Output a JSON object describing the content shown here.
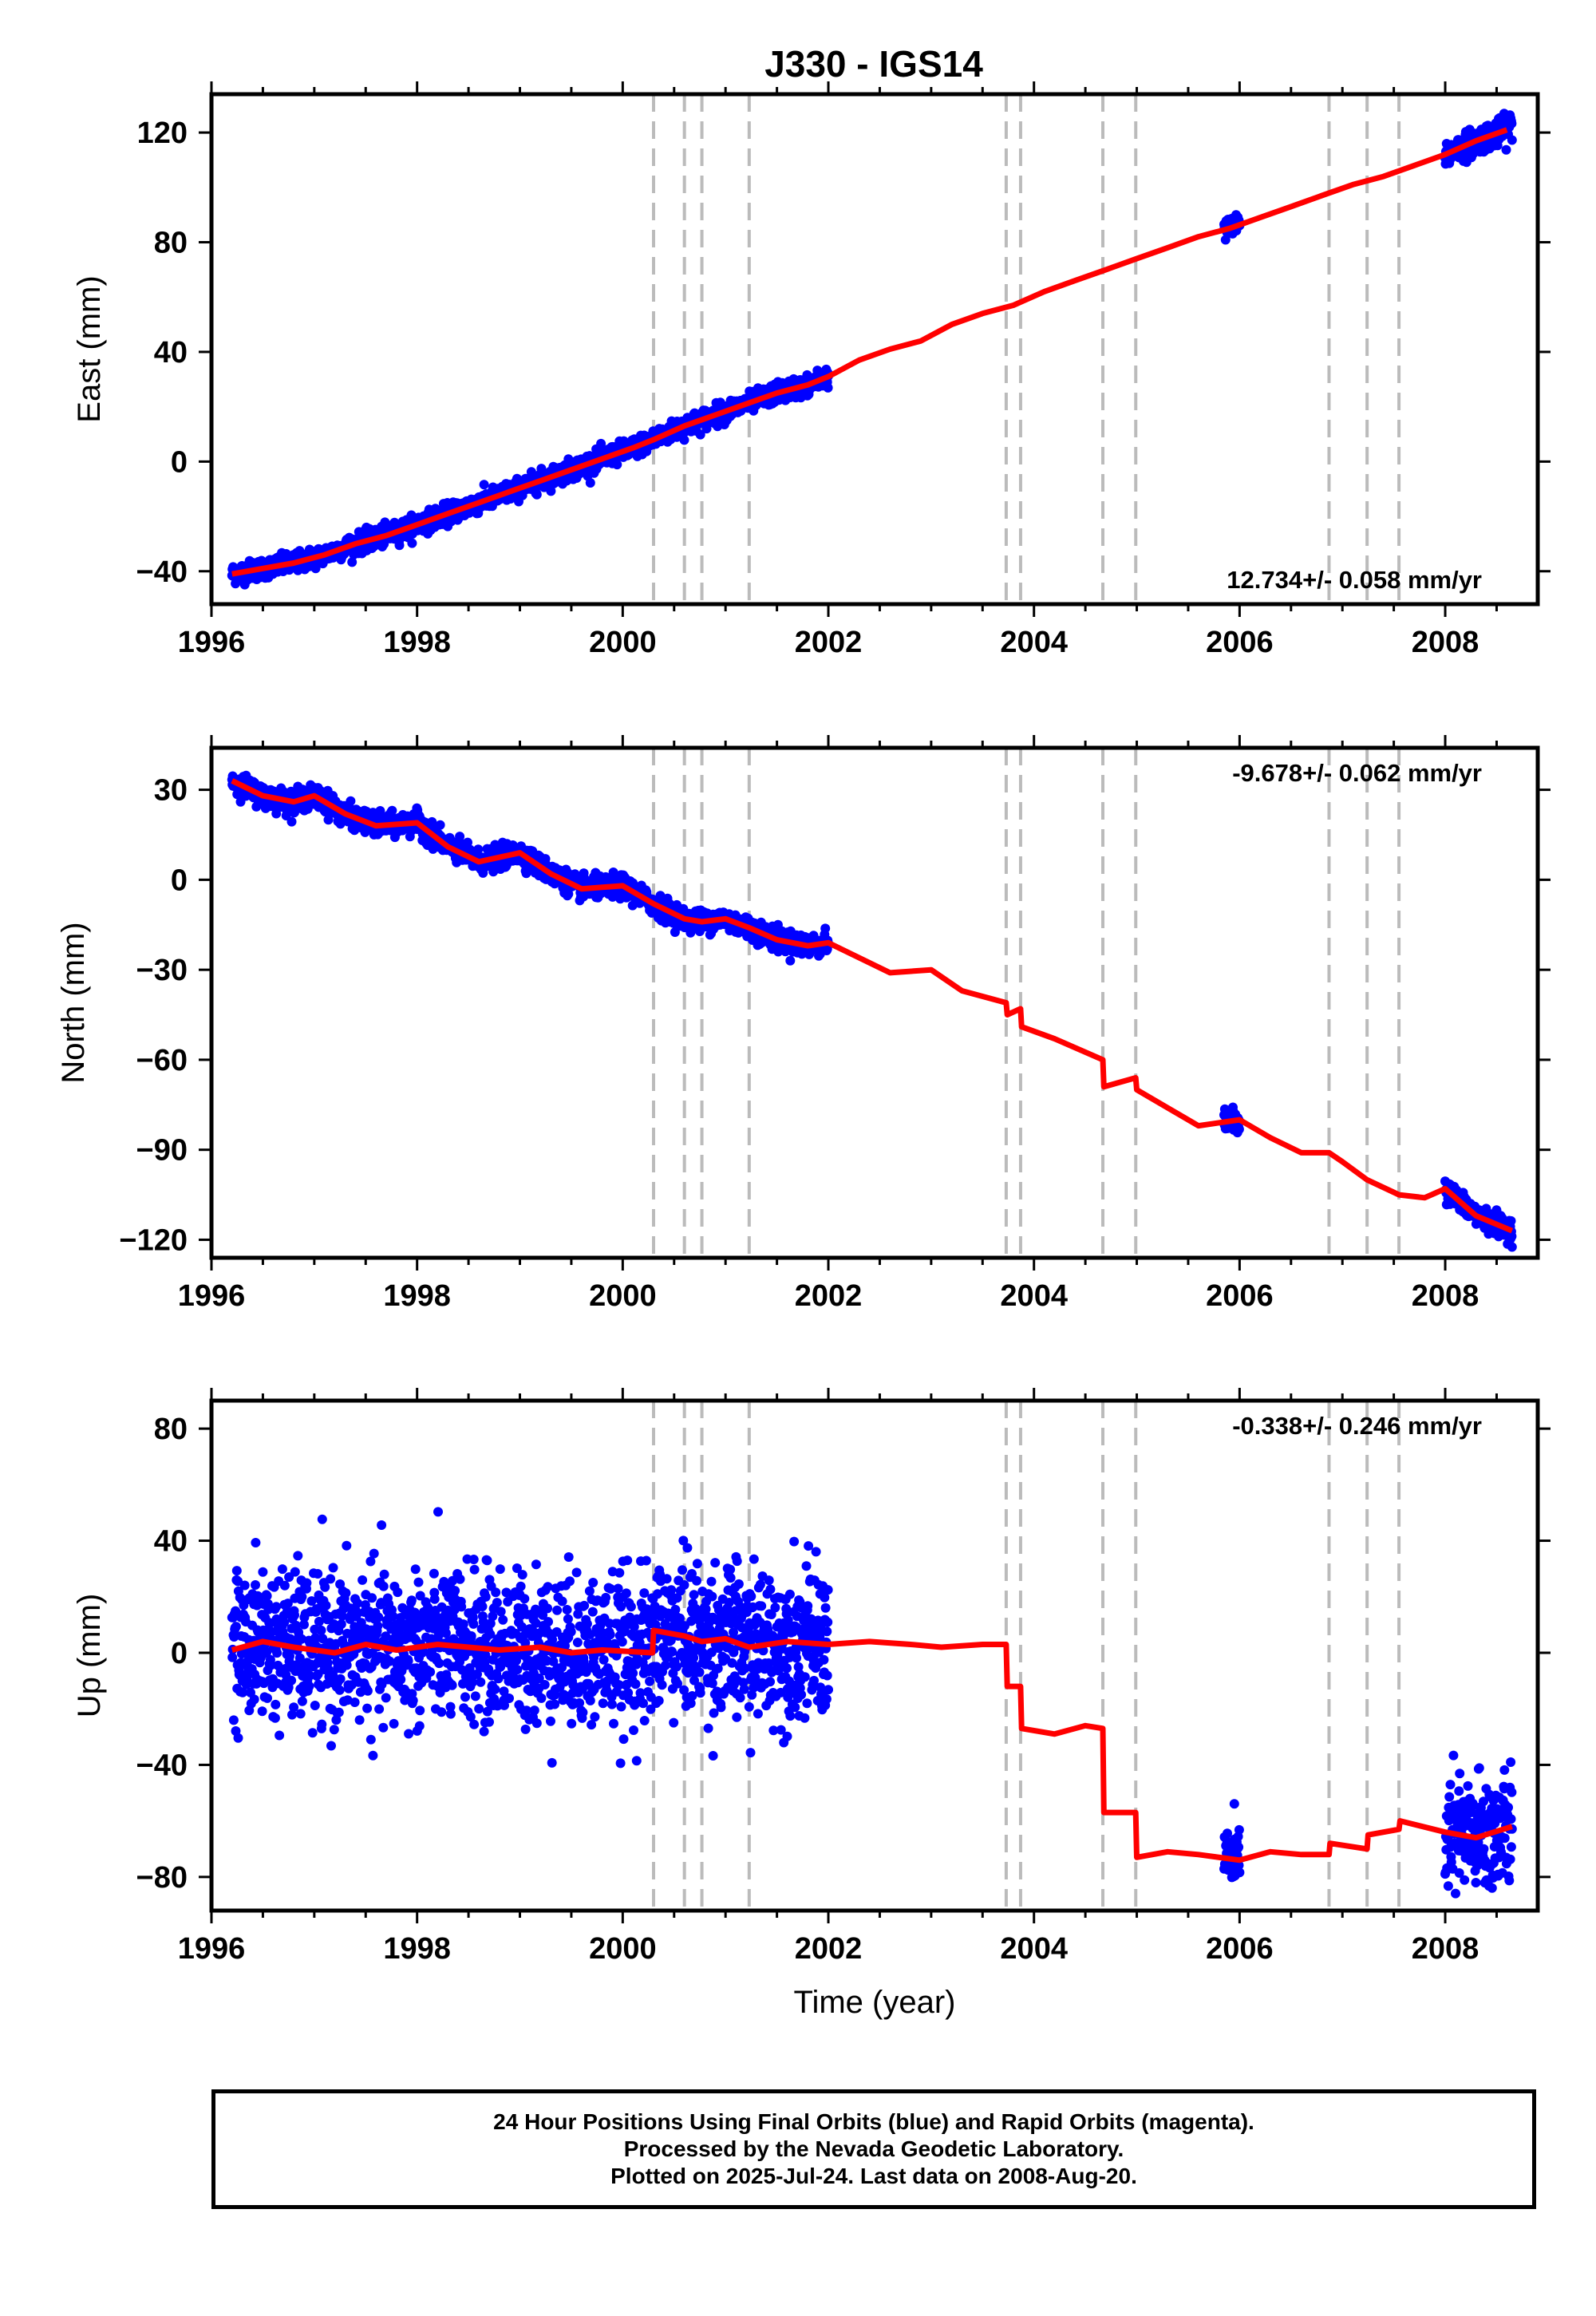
{
  "title": "J330 - IGS14",
  "colors": {
    "final_orbits": "#0000ff",
    "model": "#ff0000",
    "event_lines": "#bbbbbb",
    "axes": "#000000"
  },
  "chart_data": [
    {
      "type": "scatter",
      "component": "East",
      "ylabel": "East (mm)",
      "xlabel": "",
      "xlim": [
        1996.0,
        2008.9
      ],
      "ylim": [
        -52,
        134
      ],
      "yticks": [
        -40,
        0,
        40,
        80,
        120
      ],
      "ytick_labels": [
        "−40",
        "0",
        "40",
        "80",
        "120"
      ],
      "xticks": [
        1996,
        1998,
        2000,
        2002,
        2004,
        2006,
        2008
      ],
      "xtick_labels": [
        "1996",
        "1998",
        "2000",
        "2002",
        "2004",
        "2006",
        "2008"
      ],
      "velocity": "12.734+/- 0.058 mm/yr",
      "velocity_position": "bottom-right",
      "event_lines_x": [
        2000.3,
        2000.6,
        2000.77,
        2001.23,
        2003.73,
        2003.87,
        2004.67,
        2004.99,
        2006.87,
        2007.24,
        2007.55
      ],
      "model_line_x": [
        1996.2,
        1996.5,
        1996.8,
        1997.1,
        1997.4,
        1997.7,
        1998.0,
        1998.3,
        1998.6,
        1998.9,
        1999.2,
        1999.5,
        1999.8,
        2000.1,
        2000.3,
        2000.6,
        2000.9,
        2001.2,
        2001.5,
        2001.8,
        2002.0,
        2002.3,
        2002.6,
        2002.9,
        2003.2,
        2003.5,
        2003.8,
        2004.1,
        2004.4,
        2004.7,
        2005.0,
        2005.3,
        2005.6,
        2005.9,
        2006.2,
        2006.5,
        2006.8,
        2007.1,
        2007.4,
        2007.7,
        2008.0,
        2008.3,
        2008.6
      ],
      "model_line_y": [
        -41,
        -39,
        -37,
        -34,
        -30,
        -27,
        -23,
        -19,
        -15,
        -11,
        -7,
        -3,
        1,
        5,
        8,
        13,
        17,
        21,
        25,
        28,
        31,
        37,
        41,
        44,
        50,
        54,
        57,
        62,
        66,
        70,
        74,
        78,
        82,
        85,
        89,
        93,
        97,
        101,
        104,
        108,
        112,
        117,
        121
      ],
      "series": [
        {
          "name": "",
          "segments": [
            {
              "x_start": 1996.2,
              "x_end": 2002.0,
              "y_start": -41,
              "y_end": 32,
              "scatter_mm": 3
            },
            {
              "x_start": 2005.85,
              "x_end": 2006.0,
              "y_start": 80,
              "y_end": 86,
              "scatter_mm": 3
            },
            {
              "x_start": 2008.0,
              "x_end": 2008.65,
              "y_start": 113,
              "y_end": 123,
              "scatter_mm": 4
            }
          ]
        }
      ]
    },
    {
      "type": "scatter",
      "component": "North",
      "ylabel": "North (mm)",
      "xlabel": "",
      "xlim": [
        1996.0,
        2008.9
      ],
      "ylim": [
        -126,
        44
      ],
      "yticks": [
        -120,
        -90,
        -60,
        -30,
        0,
        30
      ],
      "ytick_labels": [
        "−120",
        "−90",
        "−60",
        "−30",
        "0",
        "30"
      ],
      "xticks": [
        1996,
        1998,
        2000,
        2002,
        2004,
        2006,
        2008
      ],
      "xtick_labels": [
        "1996",
        "1998",
        "2000",
        "2002",
        "2004",
        "2006",
        "2008"
      ],
      "velocity": "-9.678+/- 0.062 mm/yr",
      "velocity_position": "top-right",
      "event_lines_x": [
        2000.3,
        2000.6,
        2000.77,
        2001.23,
        2003.73,
        2003.87,
        2004.67,
        2004.99,
        2006.87,
        2007.24,
        2007.55
      ],
      "model_line_x": [
        1996.2,
        1996.5,
        1996.8,
        1997.0,
        1997.3,
        1997.6,
        1998.0,
        1998.3,
        1998.6,
        1999.0,
        1999.3,
        1999.6,
        2000.0,
        2000.3,
        2000.6,
        2000.77,
        2001.0,
        2001.23,
        2001.5,
        2001.8,
        2002.0,
        2002.3,
        2002.6,
        2003.0,
        2003.3,
        2003.73,
        2003.74,
        2003.87,
        2003.88,
        2004.2,
        2004.67,
        2004.68,
        2004.99,
        2005.0,
        2005.3,
        2005.6,
        2006.0,
        2006.3,
        2006.6,
        2006.87,
        2007.0,
        2007.24,
        2007.55,
        2007.8,
        2008.0,
        2008.3,
        2008.65
      ],
      "model_line_y": [
        33,
        28,
        26,
        28,
        22,
        18,
        19,
        11,
        6,
        9,
        2,
        -3,
        -2,
        -8,
        -13,
        -14,
        -13,
        -16,
        -20,
        -22,
        -21,
        -26,
        -31,
        -30,
        -37,
        -41,
        -45,
        -43,
        -49,
        -53,
        -60,
        -69,
        -66,
        -70,
        -76,
        -82,
        -80,
        -86,
        -91,
        -91,
        -94,
        -100,
        -105,
        -106,
        -103,
        -112,
        -117
      ],
      "series": [
        {
          "name": "",
          "segments": [
            {
              "x_start": 1996.2,
              "x_end": 2002.0,
              "y_start": 32,
              "y_end": -22,
              "scatter_mm": 3
            },
            {
              "x_start": 2005.85,
              "x_end": 2006.0,
              "y_start": -78,
              "y_end": -80,
              "scatter_mm": 3
            },
            {
              "x_start": 2008.0,
              "x_end": 2008.65,
              "y_start": -104,
              "y_end": -114,
              "scatter_mm": 3
            }
          ]
        }
      ]
    },
    {
      "type": "scatter",
      "component": "Up",
      "ylabel": "Up (mm)",
      "xlabel": "Time (year)",
      "xlim": [
        1996.0,
        2008.9
      ],
      "ylim": [
        -92,
        90
      ],
      "yticks": [
        -80,
        -40,
        0,
        40,
        80
      ],
      "ytick_labels": [
        "−80",
        "−40",
        "0",
        "40",
        "80"
      ],
      "xticks": [
        1996,
        1998,
        2000,
        2002,
        2004,
        2006,
        2008
      ],
      "xtick_labels": [
        "1996",
        "1998",
        "2000",
        "2002",
        "2004",
        "2006",
        "2008"
      ],
      "velocity": "-0.338+/- 0.246 mm/yr",
      "velocity_position": "top-right",
      "event_lines_x": [
        2000.3,
        2000.6,
        2000.77,
        2001.23,
        2003.73,
        2003.87,
        2004.67,
        2004.99,
        2006.87,
        2007.24,
        2007.55
      ],
      "model_line_x": [
        1996.2,
        1996.5,
        1996.8,
        1997.2,
        1997.5,
        1997.8,
        1998.2,
        1998.5,
        1998.8,
        1999.2,
        1999.5,
        1999.8,
        2000.29,
        2000.3,
        2000.6,
        2000.77,
        2001.0,
        2001.23,
        2001.6,
        2002.0,
        2002.4,
        2002.8,
        2003.1,
        2003.5,
        2003.73,
        2003.74,
        2003.87,
        2003.88,
        2004.2,
        2004.5,
        2004.67,
        2004.68,
        2004.99,
        2005.0,
        2005.3,
        2005.6,
        2006.0,
        2006.3,
        2006.6,
        2006.87,
        2006.88,
        2007.24,
        2007.25,
        2007.55,
        2007.56,
        2008.0,
        2008.3,
        2008.65
      ],
      "model_line_y": [
        1,
        4,
        2,
        0,
        3,
        1,
        3,
        2,
        1,
        2,
        0,
        1,
        0,
        8,
        6,
        4,
        5,
        2,
        4,
        3,
        4,
        3,
        2,
        3,
        3,
        -12,
        -12,
        -27,
        -29,
        -26,
        -27,
        -57,
        -57,
        -73,
        -71,
        -72,
        -74,
        -71,
        -72,
        -72,
        -68,
        -70,
        -65,
        -63,
        -60,
        -64,
        -66,
        -62
      ],
      "series": [
        {
          "name": "",
          "segments": [
            {
              "x_start": 1996.2,
              "x_end": 2002.0,
              "y_start": 1,
              "y_end": 3,
              "scatter_mm": 22
            },
            {
              "x_start": 2005.85,
              "x_end": 2006.0,
              "y_start": -72,
              "y_end": -74,
              "scatter_mm": 10
            },
            {
              "x_start": 2008.0,
              "x_end": 2008.65,
              "y_start": -62,
              "y_end": -62,
              "scatter_mm": 18
            }
          ]
        }
      ]
    }
  ],
  "footer": {
    "line1": "24 Hour Positions Using Final Orbits (blue) and Rapid Orbits (magenta).",
    "line2": "Processed by the Nevada Geodetic Laboratory.",
    "line3": "Plotted on 2025-Jul-24. Last data on 2008-Aug-20."
  }
}
